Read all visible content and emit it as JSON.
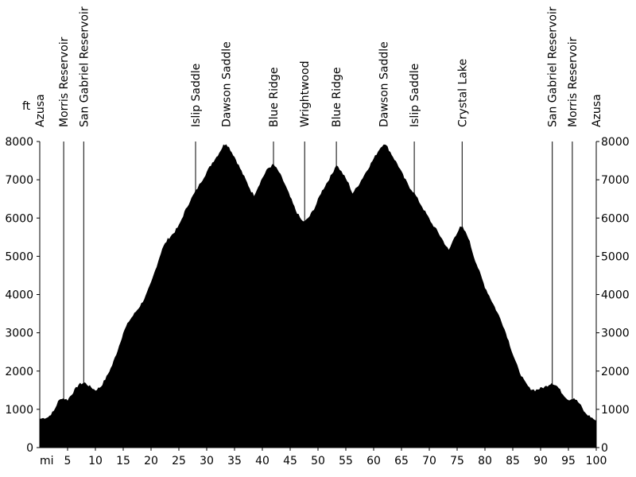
{
  "chart_data": {
    "type": "area",
    "ylabel": "ft",
    "xlabel": "mi",
    "xlim": [
      0,
      100
    ],
    "ylim": [
      0,
      8000
    ],
    "x_ticks": [
      5,
      10,
      15,
      20,
      25,
      30,
      35,
      40,
      45,
      50,
      55,
      60,
      65,
      70,
      75,
      80,
      85,
      90,
      95,
      100
    ],
    "x_tick_labels": [
      "5",
      "10",
      "15",
      "20",
      "25",
      "30",
      "35",
      "40",
      "45",
      "50",
      "55",
      "60",
      "65",
      "70",
      "75",
      "80",
      "85",
      "90",
      "95",
      "100"
    ],
    "y_ticks": [
      0,
      1000,
      2000,
      3000,
      4000,
      5000,
      6000,
      7000,
      8000
    ],
    "y_tick_labels": [
      "0",
      "1000",
      "2000",
      "3000",
      "4000",
      "5000",
      "6000",
      "7000",
      "8000"
    ],
    "fill_color": "#000000",
    "landmarks": [
      {
        "label": "Azusa",
        "x": 0,
        "line": false
      },
      {
        "label": "Morris Reservoir",
        "x": 4.3,
        "line": true
      },
      {
        "label": "San Gabriel Reservoir",
        "x": 7.9,
        "line": true
      },
      {
        "label": "Islip Saddle",
        "x": 28,
        "line": true
      },
      {
        "label": "Dawson Saddle",
        "x": 33.5,
        "line": false
      },
      {
        "label": "Blue Ridge",
        "x": 42,
        "line": true
      },
      {
        "label": "Wrightwood",
        "x": 47.6,
        "line": true
      },
      {
        "label": "Blue Ridge",
        "x": 53.3,
        "line": true
      },
      {
        "label": "Dawson Saddle",
        "x": 61.8,
        "line": false
      },
      {
        "label": "Islip Saddle",
        "x": 67.3,
        "line": true
      },
      {
        "label": "Crystal Lake",
        "x": 75.9,
        "line": true
      },
      {
        "label": "San Gabriel Reservoir",
        "x": 92.1,
        "line": true
      },
      {
        "label": "Morris Reservoir",
        "x": 95.7,
        "line": true
      },
      {
        "label": "Azusa",
        "x": 100,
        "line": false
      }
    ],
    "profile": [
      [
        0,
        750
      ],
      [
        1.5,
        800
      ],
      [
        2.5,
        950
      ],
      [
        3.3,
        1200
      ],
      [
        4,
        1300
      ],
      [
        5,
        1250
      ],
      [
        6,
        1450
      ],
      [
        7,
        1650
      ],
      [
        8,
        1700
      ],
      [
        9,
        1600
      ],
      [
        10,
        1500
      ],
      [
        11,
        1600
      ],
      [
        12,
        1850
      ],
      [
        13,
        2150
      ],
      [
        14,
        2550
      ],
      [
        15,
        3000
      ],
      [
        16,
        3300
      ],
      [
        17,
        3500
      ],
      [
        18,
        3700
      ],
      [
        19,
        3950
      ],
      [
        20,
        4300
      ],
      [
        21,
        4750
      ],
      [
        22,
        5200
      ],
      [
        23,
        5450
      ],
      [
        24,
        5600
      ],
      [
        25,
        5800
      ],
      [
        26,
        6150
      ],
      [
        27,
        6450
      ],
      [
        28,
        6700
      ],
      [
        29,
        6950
      ],
      [
        30,
        7200
      ],
      [
        31,
        7450
      ],
      [
        32,
        7650
      ],
      [
        33,
        7900
      ],
      [
        33.5,
        7950
      ],
      [
        34,
        7850
      ],
      [
        35,
        7600
      ],
      [
        36,
        7300
      ],
      [
        37,
        7000
      ],
      [
        38,
        6700
      ],
      [
        38.5,
        6600
      ],
      [
        39,
        6750
      ],
      [
        40,
        7050
      ],
      [
        41,
        7300
      ],
      [
        42,
        7400
      ],
      [
        43,
        7200
      ],
      [
        44,
        6900
      ],
      [
        45,
        6550
      ],
      [
        46,
        6200
      ],
      [
        47,
        5950
      ],
      [
        47.6,
        5900
      ],
      [
        48.5,
        6050
      ],
      [
        49.5,
        6300
      ],
      [
        50.5,
        6650
      ],
      [
        51.5,
        6900
      ],
      [
        52.5,
        7150
      ],
      [
        53.3,
        7400
      ],
      [
        54.5,
        7150
      ],
      [
        55.5,
        6900
      ],
      [
        56.2,
        6650
      ],
      [
        57,
        6800
      ],
      [
        58,
        7050
      ],
      [
        59,
        7300
      ],
      [
        60,
        7550
      ],
      [
        61,
        7800
      ],
      [
        61.8,
        7950
      ],
      [
        62.5,
        7850
      ],
      [
        63.5,
        7600
      ],
      [
        64.5,
        7350
      ],
      [
        65.5,
        7050
      ],
      [
        66.5,
        6800
      ],
      [
        67.3,
        6650
      ],
      [
        68.5,
        6350
      ],
      [
        69.5,
        6100
      ],
      [
        70.5,
        5850
      ],
      [
        71.5,
        5650
      ],
      [
        72.5,
        5400
      ],
      [
        73.5,
        5150
      ],
      [
        74.5,
        5500
      ],
      [
        75.5,
        5750
      ],
      [
        76,
        5750
      ],
      [
        77,
        5500
      ],
      [
        78,
        5000
      ],
      [
        79,
        4600
      ],
      [
        80,
        4200
      ],
      [
        81,
        3900
      ],
      [
        82,
        3600
      ],
      [
        83,
        3300
      ],
      [
        84,
        2900
      ],
      [
        85,
        2450
      ],
      [
        86,
        2050
      ],
      [
        87,
        1750
      ],
      [
        88,
        1550
      ],
      [
        89,
        1500
      ],
      [
        90,
        1550
      ],
      [
        91,
        1600
      ],
      [
        92,
        1700
      ],
      [
        93,
        1600
      ],
      [
        94,
        1400
      ],
      [
        95,
        1250
      ],
      [
        96,
        1300
      ],
      [
        97,
        1150
      ],
      [
        98,
        900
      ],
      [
        99,
        800
      ],
      [
        100,
        700
      ]
    ]
  }
}
